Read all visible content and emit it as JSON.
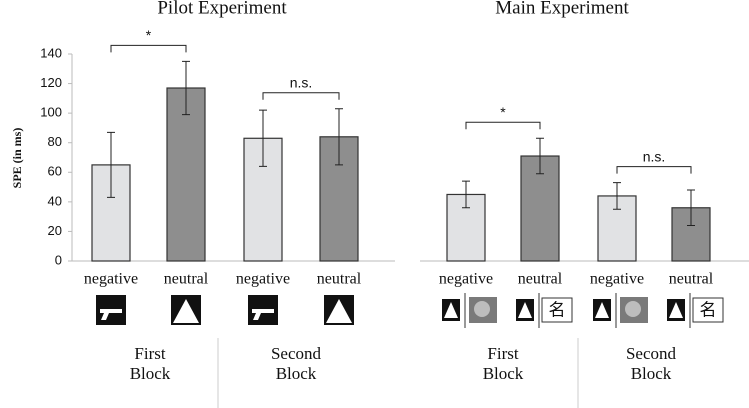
{
  "chart_data": [
    {
      "type": "bar",
      "title": "Pilot Experiment",
      "y_label": "SPE (in ms)",
      "categories": [
        "negative",
        "neutral",
        "negative",
        "neutral"
      ],
      "values": [
        65,
        117,
        83,
        84
      ],
      "errors": [
        22,
        18,
        19,
        19
      ],
      "colors": [
        "#e1e2e4",
        "#8e8e8e",
        "#e1e2e4",
        "#8e8e8e"
      ],
      "ylim": [
        0,
        140
      ],
      "yticks": [
        0,
        20,
        40,
        60,
        80,
        100,
        120,
        140
      ],
      "groups": [
        "First Block",
        "Second Block"
      ],
      "annotations": [
        "*",
        "n.s."
      ]
    },
    {
      "type": "bar",
      "title": "Main Experiment",
      "categories": [
        "negative",
        "neutral",
        "negative",
        "neutral"
      ],
      "values": [
        45,
        71,
        44,
        36
      ],
      "errors": [
        9,
        12,
        9,
        12
      ],
      "colors": [
        "#e1e2e4",
        "#8e8e8e",
        "#e1e2e4",
        "#8e8e8e"
      ],
      "ylim": [
        0,
        140
      ],
      "groups": [
        "First Block",
        "Second Block"
      ],
      "annotations": [
        "*",
        "n.s."
      ],
      "stimulus_text": "名"
    }
  ]
}
